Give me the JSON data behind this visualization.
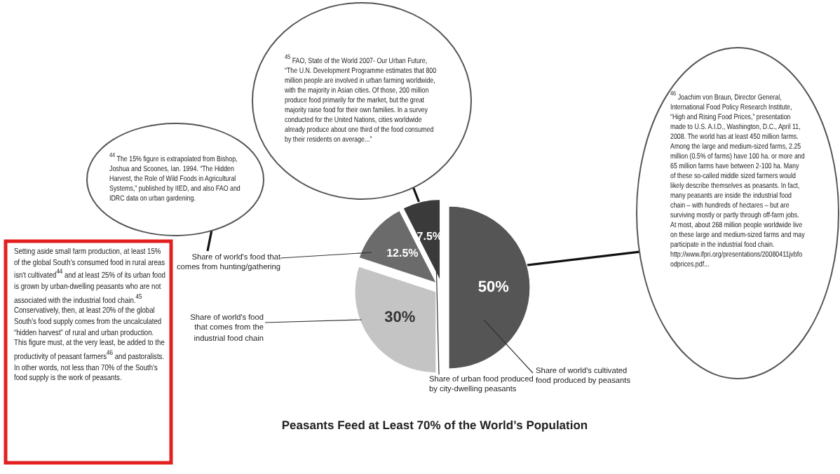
{
  "chart_data": {
    "type": "pie",
    "title": "Peasants Feed at Least 70% of the World’s Population",
    "categories": [
      "Share of world's cultivated food produced by peasants",
      "Share of world's food that comes from the industrial food chain",
      "Share of world's food that comes from hunting/gathering",
      "Share of urban food produced by city-dwelling peasants"
    ],
    "values": [
      50,
      30,
      12.5,
      7.5
    ],
    "colors": [
      "#555555",
      "#c4c4c4",
      "#6b6b6b",
      "#3a3a3a"
    ],
    "value_labels": [
      "50%",
      "30%",
      "12.5%",
      "7.5%"
    ],
    "annotations": [
      "Setting aside small farm production, at least 15% of the global South's consumed food in rural areas isn't cultivated$^{44}$ and at least 25% of its urban food is grown by urban-dwelling peasants who are not associated with the industrial food chain.$^{45}$ Conservatively, then, at least 20% of the global South's food supply comes from the uncalculated “hidden harvest” of rural and urban production. This figure must, at the very least, be added to the productivity of peasant farmers$^{46}$ and pastoralists. In other words, not less than 70% of the South's food supply is the work of peasants.",
      "$^{44}$ The 15% figure is extrapolated from Bishop, Joshua and Scoones, Ian. 1994. “The Hidden Harvest, the Role of Wild Foods in Agricultural Systems,” published by IIED, and also FAO and IDRC data on urban gardening.",
      "$^{45}$ FAO, State of the World 2007- Our Urban Future, “The U.N. Development Programme estimates that 800 million people are involved in urban farming worldwide, with the majority in Asian cities. Of those, 200 million produce food primarily for the market, but the great majority raise food for their own families. In a survey conducted for the United Nations, cities worldwide already produce about one third of the food consumed by their residents on average...”",
      "$^{46}$ Joachim von Braun, Director General, International Food Policy Research Institute, “High and Rising Food Prices,” presentation made to U.S. A.I.D., Washington, D.C., April 11, 2008. The world has at least 450 million farms. Among the large and medium-sized farms, 2.25 million (0.5% of farms) have 100 ha. or more and 65 million farms have between 2-100 ha. Many of these so-called middle sized farmers would likely describe themselves as peasants. In fact, many peasants are inside the industrial food chain – with hundreds of hectares – but are surviving mostly or partly through off-farm jobs. At most, about 268 million people worldwide live on these large and medium-sized farms and may participate in the industrial food chain. http://www.ifpri.org/presentations/20080411jvbfoodprices.pdf..."
    ]
  }
}
